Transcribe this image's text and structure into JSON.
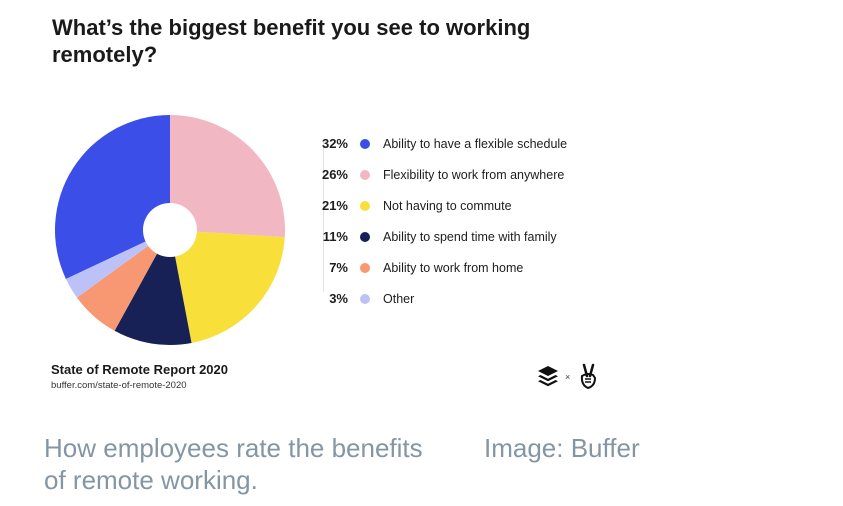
{
  "card": {
    "title": "What’s the biggest benefit you see to working remotely?",
    "source_title": "State of Remote Report 2020",
    "source_url": "buffer.com/state-of-remote-2020",
    "logos_separator": "×"
  },
  "chart_data": {
    "type": "pie",
    "style": "donut",
    "title": "What’s the biggest benefit you see to working remotely?",
    "categories": [
      "Ability to have a flexible schedule",
      "Flexibility to work from anywhere",
      "Not having to commute",
      "Ability to spend time with family",
      "Ability to work from home",
      "Other"
    ],
    "values": [
      32,
      26,
      21,
      11,
      7,
      3
    ],
    "value_labels": [
      "32%",
      "26%",
      "21%",
      "11%",
      "7%",
      "3%"
    ],
    "colors": [
      "#3b4ee8",
      "#f1b8c4",
      "#f8df3a",
      "#172156",
      "#f79873",
      "#bcc2f7"
    ],
    "legend_position": "right"
  },
  "caption": {
    "text": "How employees rate the benefits of remote working.",
    "credit": "Image: Buffer"
  },
  "icons": [
    "buffer-logo-icon",
    "victory-hand-logo-icon"
  ]
}
